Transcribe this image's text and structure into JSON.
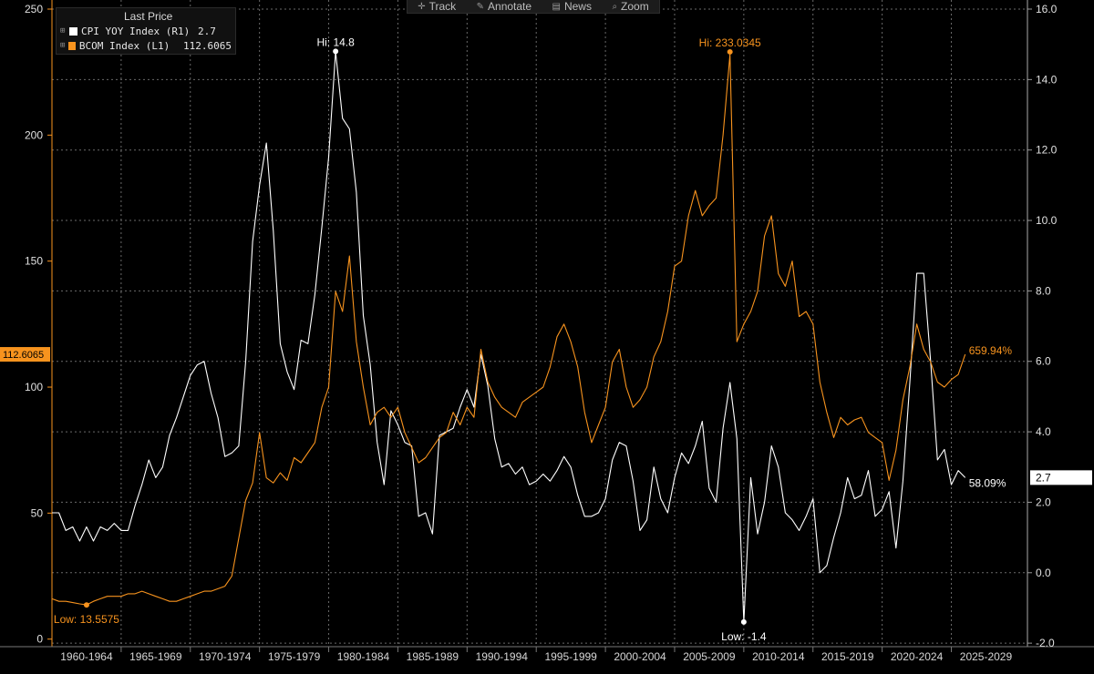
{
  "toolbar": {
    "items": [
      {
        "icon": "crosshair-icon",
        "label": "Track"
      },
      {
        "icon": "pencil-icon",
        "label": "Annotate"
      },
      {
        "icon": "news-icon",
        "label": "News"
      },
      {
        "icon": "magnifier-icon",
        "label": "Zoom"
      }
    ]
  },
  "legend": {
    "title": "Last Price",
    "rows": [
      {
        "name": "CPI YOY Index  (R1)",
        "value": "2.7",
        "color": "#ffffff"
      },
      {
        "name": "BCOM Index  (L1)",
        "value": "112.6065",
        "color": "#f7931e"
      }
    ]
  },
  "chart_data": {
    "type": "line",
    "x_categories": [
      "1960-1964",
      "1965-1969",
      "1970-1974",
      "1975-1979",
      "1980-1984",
      "1985-1989",
      "1990-1994",
      "1995-1999",
      "2000-2004",
      "2005-2009",
      "2010-2014",
      "2015-2019",
      "2020-2024",
      "2025-2029"
    ],
    "left_axis": {
      "ticks": [
        0,
        50,
        100,
        150,
        200,
        250
      ],
      "range": [
        -3,
        250
      ]
    },
    "right_axis": {
      "ticks": [
        -2.0,
        0.0,
        2.0,
        4.0,
        6.0,
        8.0,
        10.0,
        12.0,
        14.0,
        16.0
      ],
      "range": [
        -2.1,
        16.0
      ]
    },
    "grid": true,
    "series": [
      {
        "name": "CPI YOY Index",
        "axis": "right",
        "color": "#ffffff",
        "last_value": "2.7",
        "points": [
          [
            1959.5,
            1.7
          ],
          [
            1960,
            1.7
          ],
          [
            1960.5,
            1.2
          ],
          [
            1961,
            1.3
          ],
          [
            1961.5,
            0.9
          ],
          [
            1962,
            1.3
          ],
          [
            1962.5,
            0.9
          ],
          [
            1963,
            1.3
          ],
          [
            1963.5,
            1.2
          ],
          [
            1964,
            1.4
          ],
          [
            1964.5,
            1.2
          ],
          [
            1965,
            1.2
          ],
          [
            1965.5,
            1.9
          ],
          [
            1966,
            2.5
          ],
          [
            1966.5,
            3.2
          ],
          [
            1967,
            2.7
          ],
          [
            1967.5,
            3.0
          ],
          [
            1968,
            3.9
          ],
          [
            1968.5,
            4.4
          ],
          [
            1969,
            5.0
          ],
          [
            1969.5,
            5.6
          ],
          [
            1970,
            5.9
          ],
          [
            1970.5,
            6.0
          ],
          [
            1971,
            5.1
          ],
          [
            1971.5,
            4.4
          ],
          [
            1972,
            3.3
          ],
          [
            1972.5,
            3.4
          ],
          [
            1973,
            3.6
          ],
          [
            1973.5,
            6.0
          ],
          [
            1974,
            9.4
          ],
          [
            1974.5,
            11.0
          ],
          [
            1975,
            12.2
          ],
          [
            1975.5,
            9.7
          ],
          [
            1976,
            6.5
          ],
          [
            1976.5,
            5.7
          ],
          [
            1977,
            5.2
          ],
          [
            1977.5,
            6.6
          ],
          [
            1978,
            6.5
          ],
          [
            1978.5,
            7.9
          ],
          [
            1979,
            9.8
          ],
          [
            1979.5,
            11.8
          ],
          [
            1980,
            14.8
          ],
          [
            1980.5,
            12.9
          ],
          [
            1981,
            12.6
          ],
          [
            1981.5,
            10.8
          ],
          [
            1982,
            7.3
          ],
          [
            1982.5,
            5.9
          ],
          [
            1983,
            3.7
          ],
          [
            1983.5,
            2.5
          ],
          [
            1984,
            4.6
          ],
          [
            1984.5,
            4.2
          ],
          [
            1985,
            3.7
          ],
          [
            1985.5,
            3.6
          ],
          [
            1986,
            1.6
          ],
          [
            1986.5,
            1.7
          ],
          [
            1987,
            1.1
          ],
          [
            1987.5,
            3.9
          ],
          [
            1988,
            4.0
          ],
          [
            1988.5,
            4.1
          ],
          [
            1989,
            4.7
          ],
          [
            1989.5,
            5.2
          ],
          [
            1990,
            4.7
          ],
          [
            1990.5,
            6.2
          ],
          [
            1991,
            5.3
          ],
          [
            1991.5,
            3.8
          ],
          [
            1992,
            3.0
          ],
          [
            1992.5,
            3.1
          ],
          [
            1993,
            2.8
          ],
          [
            1993.5,
            3.0
          ],
          [
            1994,
            2.5
          ],
          [
            1994.5,
            2.6
          ],
          [
            1995,
            2.8
          ],
          [
            1995.5,
            2.6
          ],
          [
            1996,
            2.9
          ],
          [
            1996.5,
            3.3
          ],
          [
            1997,
            3.0
          ],
          [
            1997.5,
            2.2
          ],
          [
            1998,
            1.6
          ],
          [
            1998.5,
            1.6
          ],
          [
            1999,
            1.7
          ],
          [
            1999.5,
            2.1
          ],
          [
            2000,
            3.2
          ],
          [
            2000.5,
            3.7
          ],
          [
            2001,
            3.6
          ],
          [
            2001.5,
            2.6
          ],
          [
            2002,
            1.2
          ],
          [
            2002.5,
            1.5
          ],
          [
            2003,
            3.0
          ],
          [
            2003.5,
            2.1
          ],
          [
            2004,
            1.7
          ],
          [
            2004.5,
            2.7
          ],
          [
            2005,
            3.4
          ],
          [
            2005.5,
            3.1
          ],
          [
            2006,
            3.6
          ],
          [
            2006.5,
            4.3
          ],
          [
            2007,
            2.4
          ],
          [
            2007.5,
            2.0
          ],
          [
            2008,
            4.1
          ],
          [
            2008.5,
            5.4
          ],
          [
            2009,
            3.8
          ],
          [
            2009.5,
            -1.4
          ],
          [
            2010,
            2.7
          ],
          [
            2010.5,
            1.1
          ],
          [
            2011,
            2.0
          ],
          [
            2011.5,
            3.6
          ],
          [
            2012,
            3.0
          ],
          [
            2012.5,
            1.7
          ],
          [
            2013,
            1.5
          ],
          [
            2013.5,
            1.2
          ],
          [
            2014,
            1.6
          ],
          [
            2014.5,
            2.1
          ],
          [
            2015,
            0.0
          ],
          [
            2015.5,
            0.2
          ],
          [
            2016,
            1.0
          ],
          [
            2016.5,
            1.7
          ],
          [
            2017,
            2.7
          ],
          [
            2017.5,
            2.1
          ],
          [
            2018,
            2.2
          ],
          [
            2018.5,
            2.9
          ],
          [
            2019,
            1.6
          ],
          [
            2019.5,
            1.8
          ],
          [
            2020,
            2.3
          ],
          [
            2020.5,
            0.7
          ],
          [
            2021,
            2.6
          ],
          [
            2021.5,
            5.4
          ],
          [
            2022,
            8.5
          ],
          [
            2022.5,
            8.5
          ],
          [
            2023,
            6.0
          ],
          [
            2023.5,
            3.2
          ],
          [
            2024,
            3.5
          ],
          [
            2024.5,
            2.5
          ],
          [
            2025,
            2.9
          ],
          [
            2025.5,
            2.7
          ]
        ]
      },
      {
        "name": "BCOM Index",
        "axis": "left",
        "color": "#f7931e",
        "last_value": "112.6065",
        "points": [
          [
            1959.5,
            16
          ],
          [
            1960,
            15
          ],
          [
            1960.5,
            15
          ],
          [
            1961,
            14.5
          ],
          [
            1961.5,
            14
          ],
          [
            1962,
            13.6
          ],
          [
            1962.5,
            15
          ],
          [
            1963,
            16
          ],
          [
            1963.5,
            17
          ],
          [
            1964,
            17
          ],
          [
            1964.5,
            17
          ],
          [
            1965,
            18
          ],
          [
            1965.5,
            18
          ],
          [
            1966,
            19
          ],
          [
            1966.5,
            18
          ],
          [
            1967,
            17
          ],
          [
            1967.5,
            16
          ],
          [
            1968,
            15
          ],
          [
            1968.5,
            15
          ],
          [
            1969,
            16
          ],
          [
            1969.5,
            17
          ],
          [
            1970,
            18
          ],
          [
            1970.5,
            19
          ],
          [
            1971,
            19
          ],
          [
            1971.5,
            20
          ],
          [
            1972,
            21
          ],
          [
            1972.5,
            25
          ],
          [
            1973,
            40
          ],
          [
            1973.5,
            55
          ],
          [
            1974,
            62
          ],
          [
            1974.5,
            82
          ],
          [
            1975,
            64
          ],
          [
            1975.5,
            62
          ],
          [
            1976,
            66
          ],
          [
            1976.5,
            63
          ],
          [
            1977,
            72
          ],
          [
            1977.5,
            70
          ],
          [
            1978,
            74
          ],
          [
            1978.5,
            78
          ],
          [
            1979,
            92
          ],
          [
            1979.5,
            100
          ],
          [
            1980,
            138
          ],
          [
            1980.5,
            130
          ],
          [
            1981,
            152
          ],
          [
            1981.5,
            118
          ],
          [
            1982,
            100
          ],
          [
            1982.5,
            85
          ],
          [
            1983,
            90
          ],
          [
            1983.5,
            92
          ],
          [
            1984,
            88
          ],
          [
            1984.5,
            92
          ],
          [
            1985,
            82
          ],
          [
            1985.5,
            76
          ],
          [
            1986,
            70
          ],
          [
            1986.5,
            72
          ],
          [
            1987,
            76
          ],
          [
            1987.5,
            80
          ],
          [
            1988,
            82
          ],
          [
            1988.5,
            90
          ],
          [
            1989,
            85
          ],
          [
            1989.5,
            92
          ],
          [
            1990,
            88
          ],
          [
            1990.5,
            115
          ],
          [
            1991,
            102
          ],
          [
            1991.5,
            96
          ],
          [
            1992,
            92
          ],
          [
            1992.5,
            90
          ],
          [
            1993,
            88
          ],
          [
            1993.5,
            94
          ],
          [
            1994,
            96
          ],
          [
            1994.5,
            98
          ],
          [
            1995,
            100
          ],
          [
            1995.5,
            108
          ],
          [
            1996,
            120
          ],
          [
            1996.5,
            125
          ],
          [
            1997,
            118
          ],
          [
            1997.5,
            108
          ],
          [
            1998,
            90
          ],
          [
            1998.5,
            78
          ],
          [
            1999,
            85
          ],
          [
            1999.5,
            92
          ],
          [
            2000,
            110
          ],
          [
            2000.5,
            115
          ],
          [
            2001,
            100
          ],
          [
            2001.5,
            92
          ],
          [
            2002,
            95
          ],
          [
            2002.5,
            100
          ],
          [
            2003,
            112
          ],
          [
            2003.5,
            118
          ],
          [
            2004,
            130
          ],
          [
            2004.5,
            148
          ],
          [
            2005,
            150
          ],
          [
            2005.5,
            168
          ],
          [
            2006,
            178
          ],
          [
            2006.5,
            168
          ],
          [
            2007,
            172
          ],
          [
            2007.5,
            175
          ],
          [
            2008,
            200
          ],
          [
            2008.5,
            232
          ],
          [
            2009,
            118
          ],
          [
            2009.5,
            125
          ],
          [
            2010,
            130
          ],
          [
            2010.5,
            138
          ],
          [
            2011,
            160
          ],
          [
            2011.5,
            168
          ],
          [
            2012,
            145
          ],
          [
            2012.5,
            140
          ],
          [
            2013,
            150
          ],
          [
            2013.5,
            128
          ],
          [
            2014,
            130
          ],
          [
            2014.5,
            125
          ],
          [
            2015,
            102
          ],
          [
            2015.5,
            90
          ],
          [
            2016,
            80
          ],
          [
            2016.5,
            88
          ],
          [
            2017,
            85
          ],
          [
            2017.5,
            87
          ],
          [
            2018,
            88
          ],
          [
            2018.5,
            82
          ],
          [
            2019,
            80
          ],
          [
            2019.5,
            78
          ],
          [
            2020,
            63
          ],
          [
            2020.5,
            75
          ],
          [
            2021,
            95
          ],
          [
            2021.5,
            108
          ],
          [
            2022,
            125
          ],
          [
            2022.5,
            115
          ],
          [
            2023,
            110
          ],
          [
            2023.5,
            102
          ],
          [
            2024,
            100
          ],
          [
            2024.5,
            103
          ],
          [
            2025,
            105
          ],
          [
            2025.5,
            113
          ]
        ]
      }
    ],
    "annotations": [
      {
        "text": "Hi: 14.8",
        "series": "CPI YOY Index",
        "x": 1980,
        "y": 14.8
      },
      {
        "text": "Low: -1.4",
        "series": "CPI YOY Index",
        "x": 2009.5,
        "y": -1.4
      },
      {
        "text": "Hi: 233.0345",
        "series": "BCOM Index",
        "x": 2008.5,
        "y": 233.0345
      },
      {
        "text": "Low: 13.5575",
        "series": "BCOM Index",
        "x": 1962,
        "y": 13.5575
      },
      {
        "text": "659.94%",
        "series": "BCOM Index"
      },
      {
        "text": "58.09%",
        "series": "CPI YOY Index"
      }
    ]
  }
}
